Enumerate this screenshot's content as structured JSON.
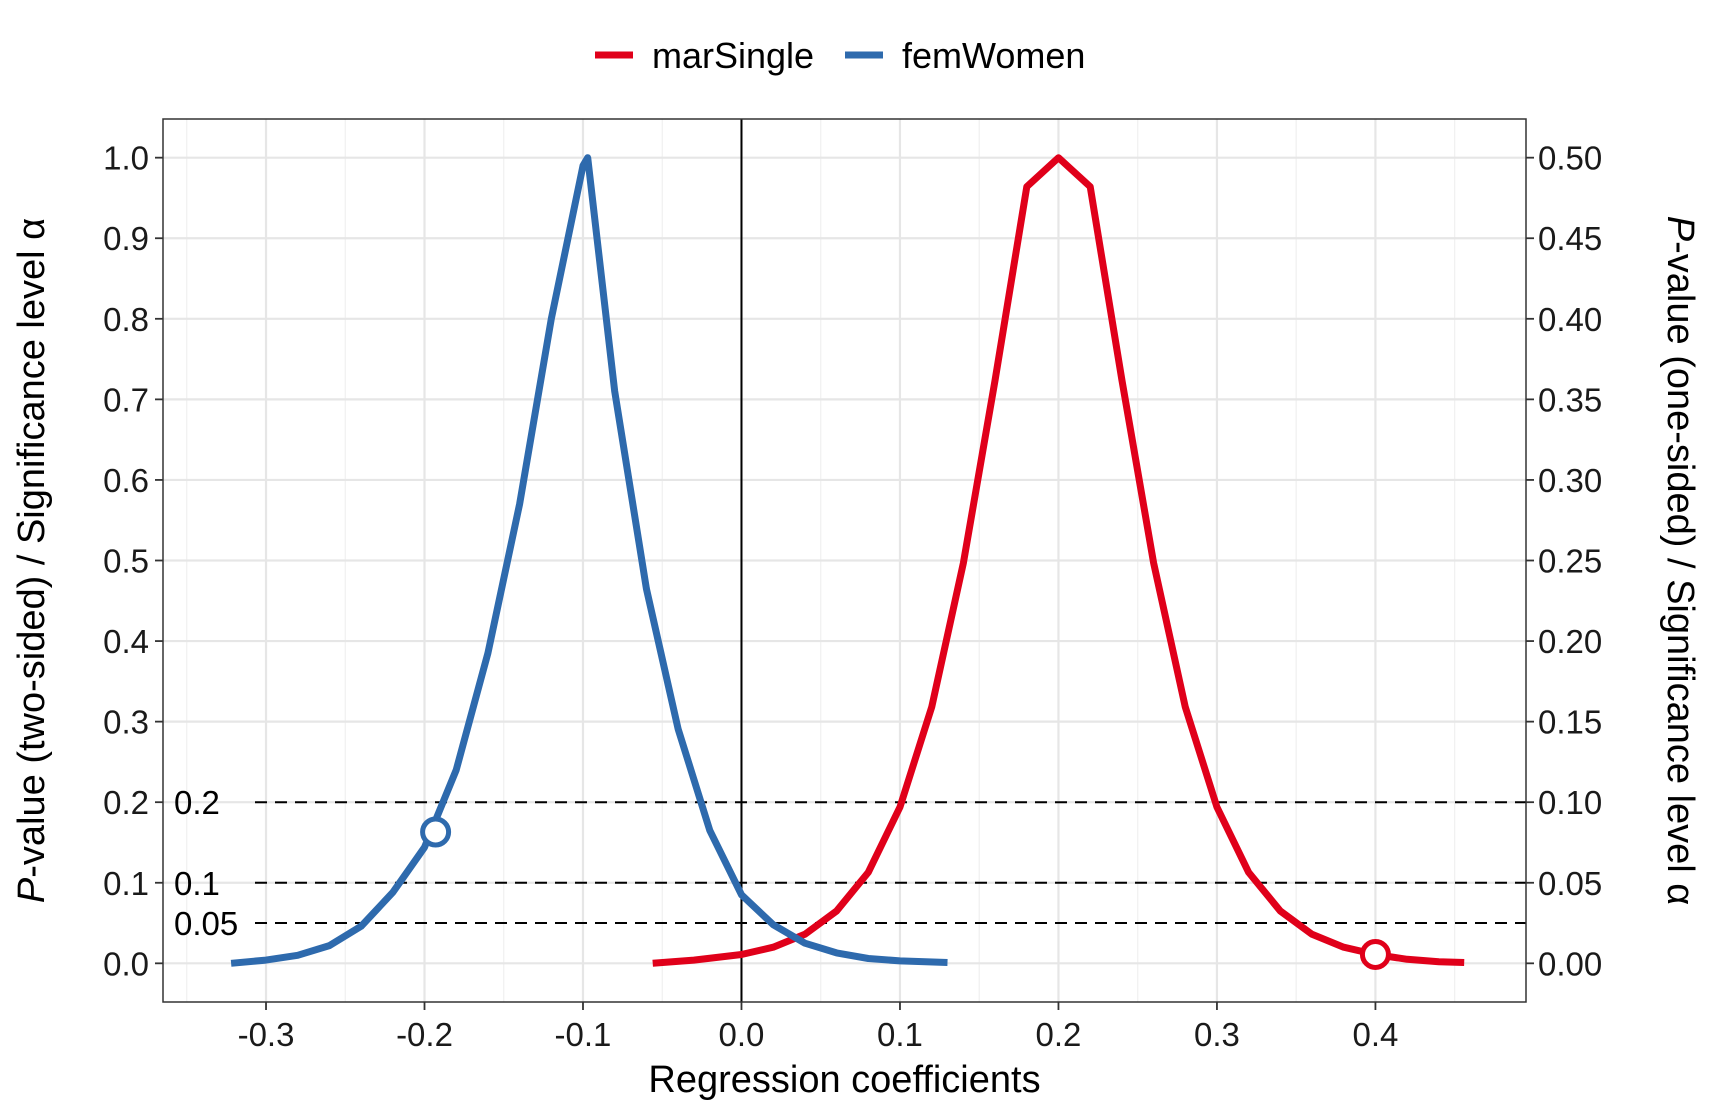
{
  "chart_data": {
    "type": "line",
    "xlabel": "Regression coefficients",
    "ylabel_left": {
      "italic": "P",
      "rest": "-value (two-sided) / Significance level α"
    },
    "ylabel_right": {
      "italic": "P",
      "rest": "-value (one-sided) / Significance level α"
    },
    "xlim": [
      -0.365,
      0.495
    ],
    "ylim": [
      -0.048,
      1.048
    ],
    "xticks": [
      -0.3,
      -0.2,
      -0.1,
      0.0,
      0.1,
      0.2,
      0.3,
      0.4
    ],
    "xtick_labels": [
      "-0.3",
      "-0.2",
      "-0.1",
      "0.0",
      "0.1",
      "0.2",
      "0.3",
      "0.4"
    ],
    "yticks_left": [
      0.0,
      0.1,
      0.2,
      0.3,
      0.4,
      0.5,
      0.6,
      0.7,
      0.8,
      0.9,
      1.0
    ],
    "ytick_labels_left": [
      "0.0",
      "0.1",
      "0.2",
      "0.3",
      "0.4",
      "0.5",
      "0.6",
      "0.7",
      "0.8",
      "0.9",
      "1.0"
    ],
    "ytick_labels_right": [
      "0.00",
      "0.05",
      "0.10",
      "0.15",
      "0.20",
      "0.25",
      "0.30",
      "0.35",
      "0.40",
      "0.45",
      "0.50"
    ],
    "grid": true,
    "legend_position": "top",
    "reference_lines": [
      {
        "y": 0.2,
        "label": "0.2"
      },
      {
        "y": 0.1,
        "label": "0.1"
      },
      {
        "y": 0.05,
        "label": "0.05"
      }
    ],
    "vline_x": 0.0,
    "series": [
      {
        "name": "marSingle",
        "color": "#e0001a",
        "x": [
          -0.056,
          -0.03,
          0.0,
          0.02,
          0.04,
          0.06,
          0.08,
          0.1,
          0.12,
          0.14,
          0.16,
          0.18,
          0.2,
          0.22,
          0.24,
          0.26,
          0.28,
          0.3,
          0.32,
          0.34,
          0.36,
          0.38,
          0.4,
          0.42,
          0.44,
          0.456
        ],
        "y": [
          0.0,
          0.004,
          0.011,
          0.02,
          0.036,
          0.065,
          0.113,
          0.194,
          0.318,
          0.497,
          0.724,
          0.964,
          1.0,
          0.964,
          0.724,
          0.497,
          0.318,
          0.194,
          0.113,
          0.065,
          0.036,
          0.02,
          0.011,
          0.005,
          0.002,
          0.001
        ],
        "marker": {
          "x": 0.4,
          "y": 0.011
        }
      },
      {
        "name": "femWomen",
        "color": "#2e6aad",
        "x": [
          -0.322,
          -0.3,
          -0.28,
          -0.26,
          -0.24,
          -0.22,
          -0.2,
          -0.18,
          -0.16,
          -0.14,
          -0.12,
          -0.1,
          -0.097,
          -0.08,
          -0.06,
          -0.04,
          -0.02,
          0.0,
          0.02,
          0.04,
          0.06,
          0.08,
          0.1,
          0.13
        ],
        "y": [
          0.0,
          0.004,
          0.01,
          0.022,
          0.046,
          0.088,
          0.144,
          0.24,
          0.385,
          0.57,
          0.8,
          0.99,
          1.0,
          0.71,
          0.465,
          0.291,
          0.165,
          0.085,
          0.048,
          0.025,
          0.013,
          0.006,
          0.003,
          0.001
        ],
        "marker": {
          "x": -0.193,
          "y": 0.163
        }
      }
    ]
  }
}
